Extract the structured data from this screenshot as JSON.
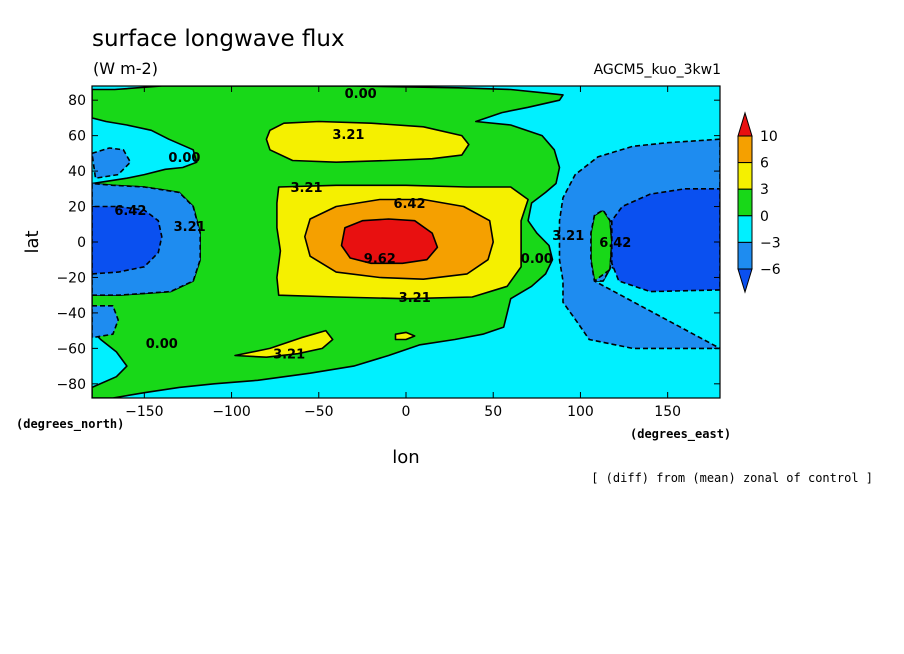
{
  "title": "surface longwave flux",
  "units": "(W m-2)",
  "experiment": "AGCM5_kuo_3kw1",
  "note": "[ (diff) from (mean) zonal of control ]",
  "chart_data": {
    "type": "heatmap",
    "subtype": "filled contour map",
    "xlabel": "lon",
    "ylabel": "lat",
    "xunits": "(degrees_east)",
    "yunits": "(degrees_north)",
    "xlim": [
      -180,
      180
    ],
    "ylim": [
      -88,
      88
    ],
    "x_ticks": [
      -150,
      -100,
      -50,
      0,
      50,
      100,
      150
    ],
    "y_ticks": [
      80,
      60,
      40,
      20,
      0,
      -20,
      -40,
      -60,
      -80
    ],
    "x_tick_labels": [
      "−150",
      "−100",
      "−50",
      "0",
      "50",
      "100",
      "150"
    ],
    "y_tick_labels": [
      "80",
      "60",
      "40",
      "20",
      "0",
      "−20",
      "−40",
      "−60",
      "−80"
    ],
    "colorbar": {
      "levels": [
        10,
        6,
        3,
        0,
        -3,
        -6
      ],
      "labels": [
        "10",
        "6",
        "3",
        "0",
        "−3",
        "−6"
      ],
      "colors": [
        "#e81010",
        "#f5a000",
        "#f5f000",
        "#18d818",
        "#00f0ff",
        "#1e8cf0",
        "#0a50f0"
      ]
    },
    "background_color": "#00f0ff",
    "regions": [
      {
        "level": 0,
        "color": "#18d818",
        "points": [
          [
            -180,
            33
          ],
          [
            -173,
            34
          ],
          [
            -160,
            36
          ],
          [
            -150,
            38
          ],
          [
            -138,
            41
          ],
          [
            -128,
            42
          ],
          [
            -120,
            45
          ],
          [
            -122,
            52
          ],
          [
            -136,
            58
          ],
          [
            -146,
            63
          ],
          [
            -160,
            66
          ],
          [
            -172,
            68
          ],
          [
            -180,
            70
          ],
          [
            -180,
            86
          ],
          [
            -167,
            86
          ],
          [
            -140,
            88
          ],
          [
            -90,
            88
          ],
          [
            -30,
            88
          ],
          [
            30,
            87
          ],
          [
            60,
            86
          ],
          [
            80,
            84
          ],
          [
            90,
            83
          ],
          [
            88,
            80
          ],
          [
            70,
            76
          ],
          [
            55,
            73
          ],
          [
            40,
            68
          ],
          [
            60,
            66
          ],
          [
            78,
            60
          ],
          [
            85,
            52
          ],
          [
            88,
            42
          ],
          [
            86,
            33
          ],
          [
            80,
            28
          ],
          [
            72,
            22
          ],
          [
            70,
            12
          ],
          [
            75,
            5
          ],
          [
            82,
            -2
          ],
          [
            84,
            -10
          ],
          [
            80,
            -18
          ],
          [
            72,
            -25
          ],
          [
            60,
            -32
          ],
          [
            58,
            -40
          ],
          [
            56,
            -48
          ],
          [
            44,
            -52
          ],
          [
            28,
            -55
          ],
          [
            8,
            -58
          ],
          [
            -10,
            -64
          ],
          [
            -30,
            -70
          ],
          [
            -55,
            -74
          ],
          [
            -85,
            -78
          ],
          [
            -110,
            -80
          ],
          [
            -130,
            -82
          ],
          [
            -150,
            -85
          ],
          [
            -168,
            -88
          ],
          [
            -180,
            -88
          ],
          [
            -180,
            -82
          ],
          [
            -166,
            -76
          ],
          [
            -160,
            -70
          ],
          [
            -166,
            -62
          ],
          [
            -175,
            -55
          ],
          [
            -180,
            -50
          ],
          [
            -180,
            -30
          ],
          [
            -165,
            -30
          ],
          [
            -150,
            -29
          ],
          [
            -135,
            -28
          ],
          [
            -122,
            -22
          ],
          [
            -118,
            -10
          ],
          [
            -118,
            5
          ],
          [
            -122,
            20
          ],
          [
            -130,
            28
          ],
          [
            -150,
            31
          ],
          [
            -168,
            32
          ]
        ]
      },
      {
        "level": 0,
        "color": "#18d818",
        "points": [
          [
            108,
            -22
          ],
          [
            106,
            -10
          ],
          [
            106,
            5
          ],
          [
            108,
            15
          ],
          [
            113,
            18
          ],
          [
            117,
            12
          ],
          [
            118,
            0
          ],
          [
            117,
            -15
          ],
          [
            113,
            -22
          ]
        ]
      },
      {
        "level": 3,
        "color": "#f5f000",
        "points": [
          [
            -73,
            31
          ],
          [
            -40,
            32
          ],
          [
            0,
            32
          ],
          [
            35,
            31
          ],
          [
            60,
            31
          ],
          [
            70,
            24
          ],
          [
            66,
            12
          ],
          [
            66,
            0
          ],
          [
            66,
            -14
          ],
          [
            58,
            -25
          ],
          [
            38,
            -31
          ],
          [
            0,
            -32
          ],
          [
            -40,
            -31
          ],
          [
            -73,
            -30
          ],
          [
            -74,
            -20
          ],
          [
            -72,
            -5
          ],
          [
            -74,
            8
          ],
          [
            -74,
            22
          ]
        ]
      },
      {
        "level": 3,
        "color": "#f5f000",
        "points": [
          [
            -78,
            63
          ],
          [
            -70,
            67
          ],
          [
            -50,
            68
          ],
          [
            -20,
            67
          ],
          [
            10,
            65
          ],
          [
            32,
            60
          ],
          [
            36,
            55
          ],
          [
            32,
            49
          ],
          [
            15,
            47
          ],
          [
            -10,
            46
          ],
          [
            -40,
            45
          ],
          [
            -65,
            46
          ],
          [
            -78,
            52
          ],
          [
            -80,
            58
          ]
        ]
      },
      {
        "level": 3,
        "color": "#f5f000",
        "points": [
          [
            -98,
            -64
          ],
          [
            -78,
            -60
          ],
          [
            -60,
            -54
          ],
          [
            -46,
            -50
          ],
          [
            -42,
            -55
          ],
          [
            -48,
            -60
          ],
          [
            -62,
            -63
          ],
          [
            -80,
            -65
          ]
        ]
      },
      {
        "level": 3,
        "color": "#f5f000",
        "points": [
          [
            -6,
            -52
          ],
          [
            0,
            -51
          ],
          [
            5,
            -53
          ],
          [
            0,
            -55
          ],
          [
            -6,
            -55
          ]
        ]
      },
      {
        "level": 6,
        "color": "#f5a000",
        "points": [
          [
            -55,
            13
          ],
          [
            -40,
            20
          ],
          [
            -15,
            24
          ],
          [
            10,
            24
          ],
          [
            33,
            20
          ],
          [
            48,
            12
          ],
          [
            50,
            0
          ],
          [
            47,
            -10
          ],
          [
            35,
            -18
          ],
          [
            10,
            -21
          ],
          [
            -15,
            -20
          ],
          [
            -40,
            -17
          ],
          [
            -55,
            -8
          ],
          [
            -58,
            3
          ]
        ]
      },
      {
        "level": 10,
        "color": "#e81010",
        "points": [
          [
            -35,
            8
          ],
          [
            -25,
            12
          ],
          [
            -10,
            13
          ],
          [
            5,
            12
          ],
          [
            15,
            5
          ],
          [
            18,
            -3
          ],
          [
            12,
            -10
          ],
          [
            -2,
            -12
          ],
          [
            -20,
            -12
          ],
          [
            -32,
            -9
          ],
          [
            -37,
            -2
          ]
        ]
      },
      {
        "level": -3,
        "color": "#1e8cf0",
        "points": [
          [
            -180,
            -30
          ],
          [
            -165,
            -30
          ],
          [
            -150,
            -29
          ],
          [
            -135,
            -28
          ],
          [
            -122,
            -22
          ],
          [
            -118,
            -10
          ],
          [
            -118,
            5
          ],
          [
            -122,
            20
          ],
          [
            -130,
            28
          ],
          [
            -150,
            31
          ],
          [
            -168,
            32
          ],
          [
            -180,
            33
          ]
        ]
      },
      {
        "level": -3,
        "color": "#1e8cf0",
        "points": [
          [
            -180,
            50
          ],
          [
            -170,
            53
          ],
          [
            -162,
            52
          ],
          [
            -158,
            45
          ],
          [
            -165,
            38
          ],
          [
            -178,
            36
          ]
        ]
      },
      {
        "level": -3,
        "color": "#1e8cf0",
        "points": [
          [
            -180,
            -36
          ],
          [
            -168,
            -36
          ],
          [
            -165,
            -44
          ],
          [
            -168,
            -52
          ],
          [
            -180,
            -54
          ]
        ]
      },
      {
        "level": -3,
        "color": "#1e8cf0",
        "points": [
          [
            180,
            -60
          ],
          [
            130,
            -60
          ],
          [
            105,
            -55
          ],
          [
            98,
            -45
          ],
          [
            90,
            -34
          ],
          [
            90,
            -22
          ],
          [
            88,
            -10
          ],
          [
            88,
            0
          ],
          [
            88,
            12
          ],
          [
            90,
            25
          ],
          [
            97,
            38
          ],
          [
            110,
            48
          ],
          [
            130,
            54
          ],
          [
            150,
            56
          ],
          [
            180,
            58
          ],
          [
            180,
            30
          ],
          [
            108,
            -22
          ],
          [
            113,
            -22
          ],
          [
            117,
            -15
          ],
          [
            118,
            0
          ],
          [
            117,
            12
          ],
          [
            113,
            18
          ],
          [
            108,
            15
          ],
          [
            106,
            5
          ],
          [
            106,
            -10
          ],
          [
            108,
            -22
          ]
        ]
      },
      {
        "level": -6,
        "color": "#0a50f0",
        "points": [
          [
            -180,
            -18
          ],
          [
            -165,
            -17
          ],
          [
            -150,
            -14
          ],
          [
            -142,
            -6
          ],
          [
            -140,
            3
          ],
          [
            -142,
            12
          ],
          [
            -150,
            18
          ],
          [
            -165,
            20
          ],
          [
            -180,
            20
          ]
        ]
      },
      {
        "level": -6,
        "color": "#0a50f0",
        "points": [
          [
            180,
            -27
          ],
          [
            140,
            -28
          ],
          [
            122,
            -22
          ],
          [
            118,
            -12
          ],
          [
            118,
            -5
          ],
          [
            118,
            5
          ],
          [
            118,
            12
          ],
          [
            124,
            20
          ],
          [
            140,
            27
          ],
          [
            160,
            30
          ],
          [
            180,
            30
          ]
        ]
      }
    ],
    "contour_labels": [
      {
        "text": "0.00",
        "lon": -26,
        "lat": 84
      },
      {
        "text": "3.21",
        "lon": -33,
        "lat": 61
      },
      {
        "text": "0.00",
        "lon": -127,
        "lat": 48
      },
      {
        "text": "3.21",
        "lon": -57,
        "lat": 31
      },
      {
        "text": "6.42",
        "lon": 2,
        "lat": 22
      },
      {
        "text": "6.42",
        "lon": -158,
        "lat": 18
      },
      {
        "text": "3.21",
        "lon": -124,
        "lat": 9
      },
      {
        "text": "9.62",
        "lon": -15,
        "lat": -9
      },
      {
        "text": "0.00",
        "lon": 75,
        "lat": -9
      },
      {
        "text": "3.21",
        "lon": 93,
        "lat": 4
      },
      {
        "text": "6.42",
        "lon": 120,
        "lat": 0
      },
      {
        "text": "3.21",
        "lon": 5,
        "lat": -31
      },
      {
        "text": "0.00",
        "lon": -140,
        "lat": -57
      },
      {
        "text": "3.21",
        "lon": -67,
        "lat": -63
      }
    ]
  }
}
